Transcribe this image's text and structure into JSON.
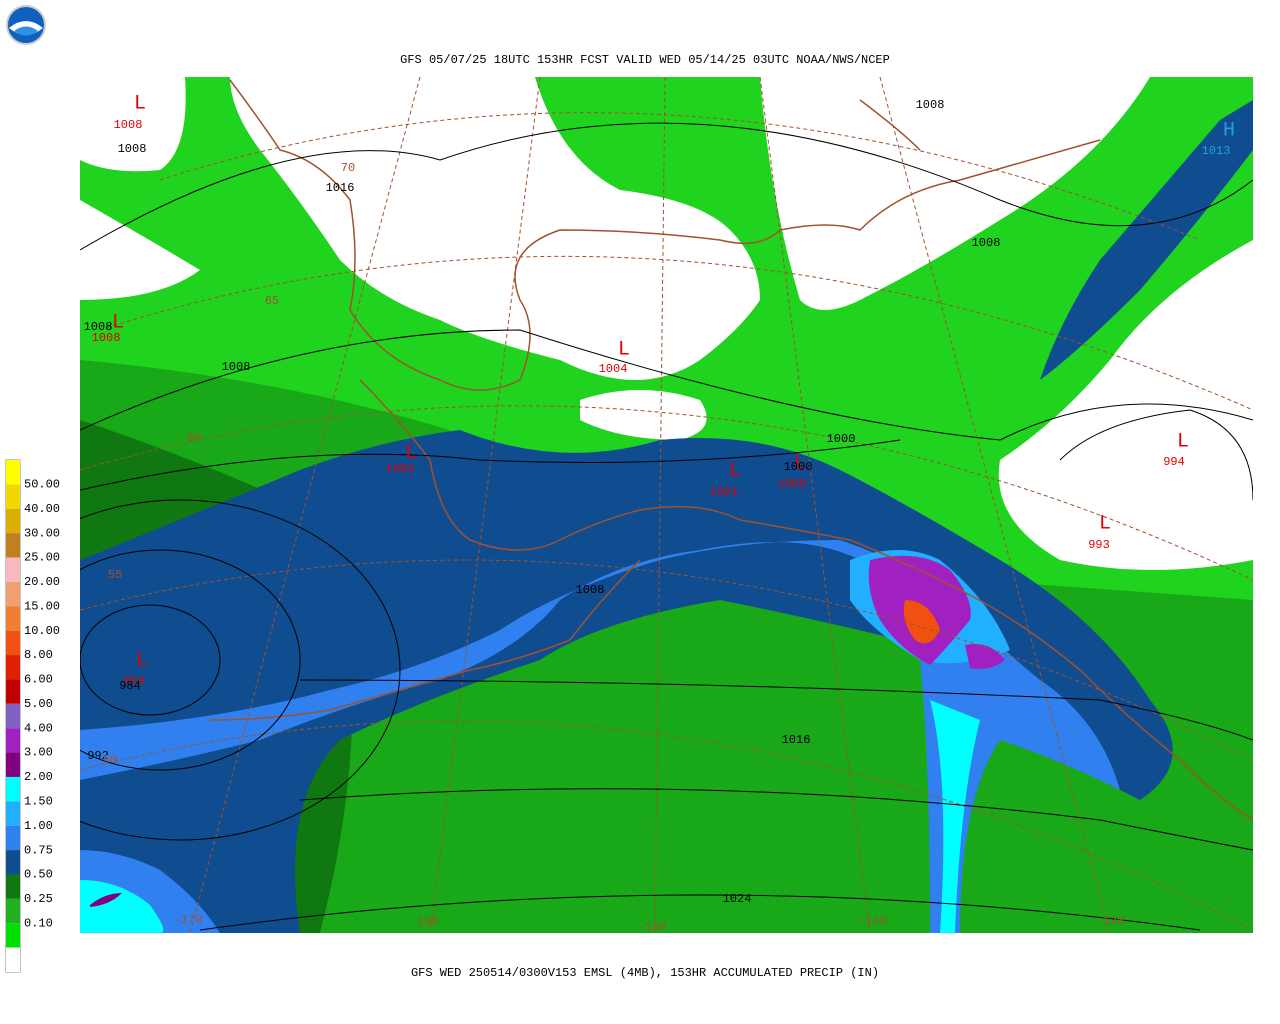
{
  "header": {
    "title": "GFS 05/07/25 18UTC 153HR FCST VALID WED 05/14/25 03UTC NOAA/NWS/NCEP"
  },
  "footer": {
    "caption": "GFS WED 250514/0300V153 EMSL (4MB), 153HR ACCUMULATED PRECIP (IN)"
  },
  "legend": {
    "labels": [
      "50.00",
      "40.00",
      "30.00",
      "25.00",
      "20.00",
      "15.00",
      "10.00",
      "8.00",
      "6.00",
      "5.00",
      "4.00",
      "3.00",
      "2.00",
      "1.50",
      "1.00",
      "0.75",
      "0.50",
      "0.25",
      "0.10"
    ],
    "colors": [
      "#ffff00",
      "#f0d800",
      "#dcb000",
      "#c08020",
      "#f8b8c0",
      "#f0a070",
      "#f08030",
      "#f05010",
      "#e02000",
      "#c00000",
      "#8060c0",
      "#a020c0",
      "#800080",
      "#00ffff",
      "#20b0ff",
      "#3080f0",
      "#104c90",
      "#107810",
      "#20b020",
      "#00e000",
      "#ffffff"
    ]
  },
  "pressure_centers": [
    {
      "symbol": "L",
      "value": "1008",
      "color": "#e00000"
    },
    {
      "symbol": "L",
      "value": "1008",
      "color": "#e00000"
    },
    {
      "symbol": "L",
      "value": "1004",
      "color": "#e00000"
    },
    {
      "symbol": "L",
      "value": "1002",
      "color": "#e00000"
    },
    {
      "symbol": "L",
      "value": "1001",
      "color": "#e00000"
    },
    {
      "symbol": "L",
      "value": "1000",
      "color": "#e00000"
    },
    {
      "symbol": "L",
      "value": "994",
      "color": "#e00000"
    },
    {
      "symbol": "L",
      "value": "993",
      "color": "#e00000"
    },
    {
      "symbol": "L",
      "value": "984",
      "color": "#e00000"
    },
    {
      "symbol": "H",
      "value": "1013",
      "color": "#20a0e0"
    }
  ],
  "isobar_labels": [
    "1008",
    "1016",
    "1008",
    "1008",
    "1008",
    "1008",
    "1000",
    "1000",
    "1008",
    "984",
    "992",
    "1016",
    "1024"
  ],
  "graticule_labels": [
    "70",
    "65",
    "60",
    "55",
    "50",
    "-170",
    "180",
    "-150",
    "-140",
    "-130"
  ]
}
